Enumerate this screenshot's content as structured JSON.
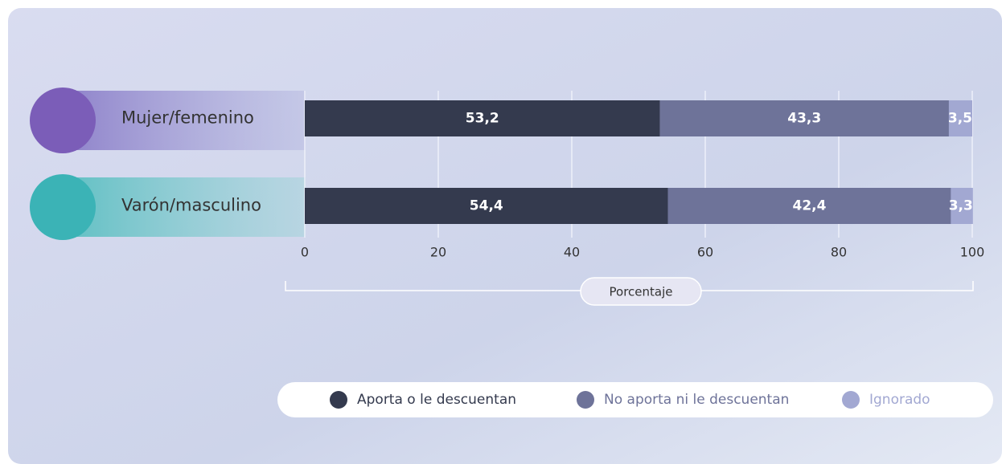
{
  "chart_data": {
    "type": "stacked-bar-horizontal",
    "categories": [
      "Mujer/femenino",
      "Varón/masculino"
    ],
    "series": [
      {
        "name": "Aporta o le descuentan",
        "color": "#343a4e",
        "values": [
          53.2,
          54.4
        ],
        "value_labels": [
          "53,2",
          "54,4"
        ]
      },
      {
        "name": "No aporta ni le descuentan",
        "color": "#6e7399",
        "values": [
          43.3,
          42.4
        ],
        "value_labels": [
          "43,3",
          "42,4"
        ]
      },
      {
        "name": "Ignorado",
        "color": "#a2a8d2",
        "values": [
          3.5,
          3.3
        ],
        "value_labels": [
          "3,5",
          "3,3"
        ]
      }
    ],
    "xlim": [
      0,
      100
    ],
    "xticks": [
      0,
      20,
      40,
      60,
      80,
      100
    ],
    "xlabel": "Porcentaje",
    "grid": true
  }
}
